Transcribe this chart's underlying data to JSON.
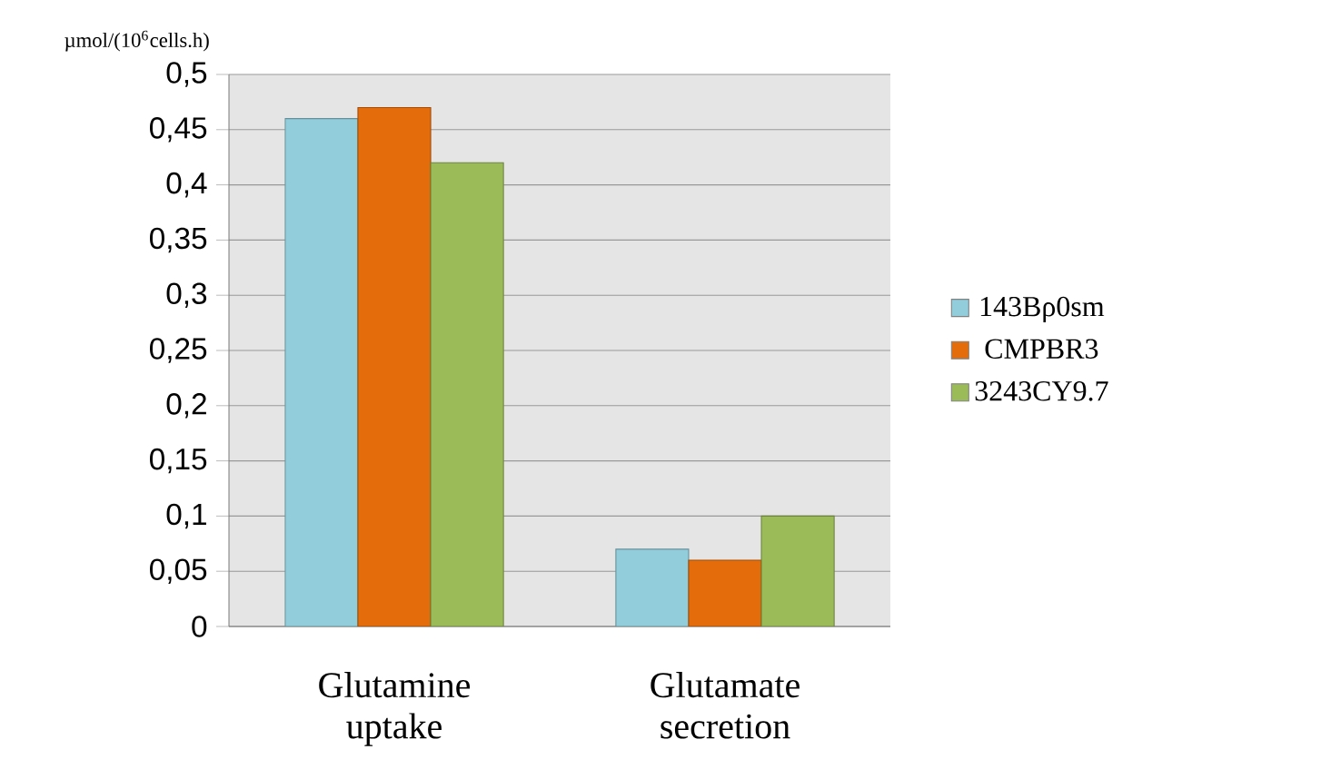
{
  "chart_data": {
    "type": "bar",
    "ylabel": "µmol/(10$^{6}$cells.h)",
    "categories": [
      "Glutamine uptake",
      "Glutamate secretion"
    ],
    "series": [
      {
        "name": "143Bρ0sm",
        "color": "#92cddc",
        "values": [
          0.46,
          0.07
        ]
      },
      {
        "name": "CMPBR3",
        "color": "#e46c0a",
        "values": [
          0.47,
          0.06
        ]
      },
      {
        "name": "3243CY9.7",
        "color": "#9bbb59",
        "values": [
          0.42,
          0.1
        ]
      }
    ],
    "ylim": [
      0,
      0.5
    ],
    "yticks": [
      {
        "value": 0,
        "label": "0"
      },
      {
        "value": 0.05,
        "label": "0,05"
      },
      {
        "value": 0.1,
        "label": "0,1"
      },
      {
        "value": 0.15,
        "label": "0,15"
      },
      {
        "value": 0.2,
        "label": "0,2"
      },
      {
        "value": 0.25,
        "label": "0,25"
      },
      {
        "value": 0.3,
        "label": "0,3"
      },
      {
        "value": 0.35,
        "label": "0,35"
      },
      {
        "value": 0.4,
        "label": "0,4"
      },
      {
        "value": 0.45,
        "label": "0,45"
      },
      {
        "value": 0.5,
        "label": "0,5"
      }
    ],
    "grid": "y",
    "legend": "right"
  }
}
